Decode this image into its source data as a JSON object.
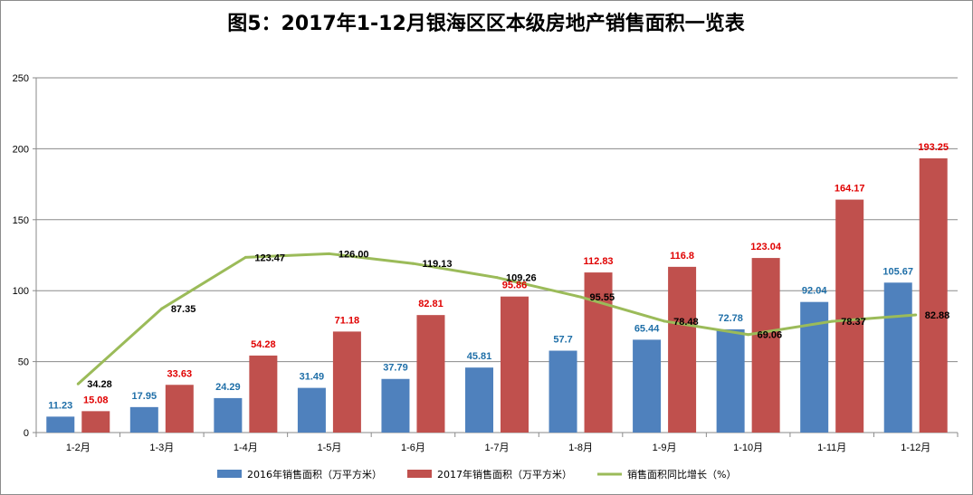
{
  "chart_data": {
    "type": "bar",
    "title": "图5：2017年1-12月银海区区本级房地产销售面积一览表",
    "categories": [
      "1-2月",
      "1-3月",
      "1-4月",
      "1-5月",
      "1-6月",
      "1-7月",
      "1-8月",
      "1-9月",
      "1-10月",
      "1-11月",
      "1-12月"
    ],
    "ylim": [
      0,
      250
    ],
    "yticks": [
      0,
      50,
      100,
      150,
      200,
      250
    ],
    "grid": true,
    "legend_position": "bottom",
    "series": [
      {
        "name": "2016年销售面积（万平方米）",
        "kind": "bar",
        "color": "#4f81bd",
        "label_color": "#1f6fa8",
        "values": [
          11.23,
          17.95,
          24.29,
          31.49,
          37.79,
          45.81,
          57.7,
          65.44,
          72.78,
          92.04,
          105.67
        ],
        "labels": [
          "11.23",
          "17.95",
          "24.29",
          "31.49",
          "37.79",
          "45.81",
          "57.7",
          "65.44",
          "72.78",
          "92.04",
          "105.67"
        ]
      },
      {
        "name": "2017年销售面积（万平方米）",
        "kind": "bar",
        "color": "#c0504d",
        "label_color": "#e00000",
        "values": [
          15.08,
          33.63,
          54.28,
          71.18,
          82.81,
          95.86,
          112.83,
          116.8,
          123.04,
          164.17,
          193.25
        ],
        "labels": [
          "15.08",
          "33.63",
          "54.28",
          "71.18",
          "82.81",
          "95.86",
          "112.83",
          "116.8",
          "123.04",
          "164.17",
          "193.25"
        ]
      },
      {
        "name": "销售面积同比增长（%）",
        "kind": "line",
        "color": "#9bbb59",
        "label_color": "#000000",
        "values": [
          34.28,
          87.35,
          123.47,
          126.0,
          119.13,
          109.26,
          95.55,
          78.48,
          69.06,
          78.37,
          82.88
        ],
        "labels": [
          "34.28",
          "87.35",
          "123.47",
          "126.00",
          "119.13",
          "109.26",
          "95.55",
          "78.48",
          "69.06",
          "78.37",
          "82.88"
        ]
      }
    ]
  }
}
